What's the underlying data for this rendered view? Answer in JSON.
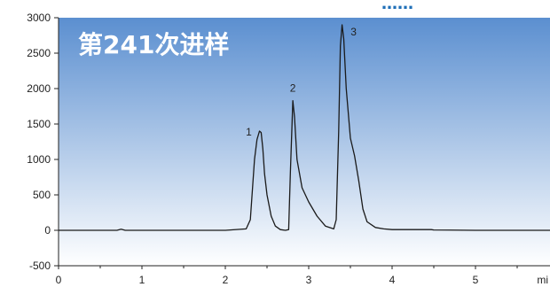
{
  "header_fragment": "……",
  "overlay_title": "第241次进样",
  "chart_data": {
    "type": "line",
    "title": "",
    "xlabel": "mi",
    "ylabel": "",
    "xlim": [
      0,
      6
    ],
    "ylim": [
      -500,
      3000
    ],
    "x_ticks": [
      0,
      1,
      2,
      3,
      4,
      5
    ],
    "y_ticks": [
      3000,
      2500,
      2000,
      1500,
      1000,
      500,
      0,
      -500
    ],
    "grid": false,
    "background_gradient": {
      "top": "#5b8fd0",
      "bottom": "#ffffff"
    },
    "line_color": "#1a1a1a",
    "peaks": [
      {
        "label": "1",
        "x": 2.43,
        "y": 1400
      },
      {
        "label": "2",
        "x": 2.81,
        "y": 1830
      },
      {
        "label": "3",
        "x": 3.4,
        "y": 2900
      }
    ],
    "series": [
      {
        "x": [
          0.0,
          0.5,
          0.7,
          0.75,
          0.8,
          1.4,
          2.0,
          2.25,
          2.3,
          2.35,
          2.38,
          2.41,
          2.43,
          2.45,
          2.47,
          2.5,
          2.55,
          2.6,
          2.66,
          2.72,
          2.76,
          2.78,
          2.81,
          2.83,
          2.86,
          2.92,
          3.0,
          3.1,
          3.2,
          3.3,
          3.33,
          3.36,
          3.38,
          3.4,
          3.42,
          3.45,
          3.5,
          3.55,
          3.6,
          3.65,
          3.7,
          3.8,
          3.9,
          4.0,
          4.47,
          4.5,
          5.0,
          6.0
        ],
        "y": [
          0,
          0,
          0,
          15,
          0,
          0,
          0,
          20,
          150,
          1000,
          1280,
          1400,
          1380,
          1150,
          800,
          500,
          200,
          60,
          10,
          0,
          10,
          800,
          1830,
          1600,
          1000,
          600,
          400,
          200,
          60,
          20,
          150,
          1400,
          2600,
          2900,
          2700,
          2000,
          1300,
          1050,
          700,
          300,
          120,
          40,
          20,
          10,
          10,
          5,
          0,
          0
        ]
      }
    ]
  }
}
